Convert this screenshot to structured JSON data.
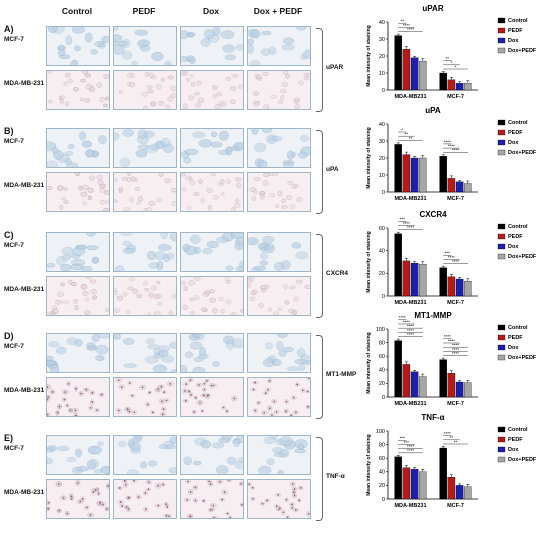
{
  "columns": [
    "Control",
    "PEDF",
    "Dox",
    "Dox + PEDF"
  ],
  "rows": [
    "MCF-7",
    "MDA-MB-231"
  ],
  "colors": {
    "control": "#000000",
    "pedf": "#b01c1c",
    "dox": "#1f1fa8",
    "dox_pedf": "#a6a6a6",
    "mcf7_stain": "#b9cfe4",
    "mda_stain": "#e7d6dc"
  },
  "panels": [
    {
      "letter": "A)",
      "marker": "uPAR"
    },
    {
      "letter": "B)",
      "marker": "uPA"
    },
    {
      "letter": "C)",
      "marker": "CXCR4"
    },
    {
      "letter": "D)",
      "marker": "MT1-MMP"
    },
    {
      "letter": "E)",
      "marker": "TNF-α"
    }
  ],
  "chart_data": [
    {
      "type": "bar",
      "title": "uPAR",
      "ylabel": "Mean intensity of staining",
      "ylim": [
        0,
        40
      ],
      "yticks": [
        "0",
        "10",
        "20",
        "30",
        "40"
      ],
      "categories": [
        "MDA-MB231",
        "MCF-7"
      ],
      "series": [
        {
          "name": "Control",
          "values": [
            32,
            10
          ]
        },
        {
          "name": "PEDF",
          "values": [
            24,
            6
          ]
        },
        {
          "name": "Dox",
          "values": [
            19,
            4
          ]
        },
        {
          "name": "Dox+PEDF",
          "values": [
            17,
            4
          ]
        }
      ],
      "significance": [
        "**",
        "****",
        "****",
        "**",
        "*",
        "*"
      ]
    },
    {
      "type": "bar",
      "title": "uPA",
      "ylabel": "Mean intensity of staining",
      "ylim": [
        0,
        40
      ],
      "yticks": [
        "0",
        "10",
        "20",
        "30",
        "40"
      ],
      "categories": [
        "MDA-MB231",
        "MCF-7"
      ],
      "series": [
        {
          "name": "Control",
          "values": [
            28,
            21
          ]
        },
        {
          "name": "PEDF",
          "values": [
            22,
            8
          ]
        },
        {
          "name": "Dox",
          "values": [
            20,
            6
          ]
        },
        {
          "name": "Dox+PEDF",
          "values": [
            20,
            5
          ]
        }
      ],
      "significance": [
        "*",
        "**",
        "**",
        "****",
        "****",
        "****"
      ]
    },
    {
      "type": "bar",
      "title": "CXCR4",
      "ylabel": "Mean intensity of staining",
      "ylim": [
        0,
        60
      ],
      "yticks": [
        "0",
        "20",
        "40",
        "60"
      ],
      "categories": [
        "MDA-MB231",
        "MCF-7"
      ],
      "series": [
        {
          "name": "Control",
          "values": [
            55,
            25
          ]
        },
        {
          "name": "PEDF",
          "values": [
            31,
            17
          ]
        },
        {
          "name": "Dox",
          "values": [
            29,
            15
          ]
        },
        {
          "name": "Dox+PEDF",
          "values": [
            28,
            13
          ]
        }
      ],
      "significance": [
        "***",
        "****",
        "****",
        "***",
        "****",
        "****"
      ]
    },
    {
      "type": "bar",
      "title": "MT1-MMP",
      "ylabel": "Mean intensity of staining",
      "ylim": [
        0,
        100
      ],
      "yticks": [
        "0",
        "20",
        "40",
        "60",
        "80",
        "100"
      ],
      "categories": [
        "MDA-MB231",
        "MCF-7"
      ],
      "series": [
        {
          "name": "Control",
          "values": [
            83,
            55
          ]
        },
        {
          "name": "PEDF",
          "values": [
            48,
            35
          ]
        },
        {
          "name": "Dox",
          "values": [
            37,
            22
          ]
        },
        {
          "name": "Dox+PEDF",
          "values": [
            30,
            21
          ]
        }
      ],
      "significance": [
        "****",
        "****",
        "****",
        "****",
        "****",
        "****",
        "****",
        "****",
        "****",
        "****"
      ]
    },
    {
      "type": "bar",
      "title": "TNF-α",
      "ylabel": "Mean intensity of staining",
      "ylim": [
        0,
        100
      ],
      "yticks": [
        "0",
        "20",
        "40",
        "60",
        "80",
        "100"
      ],
      "categories": [
        "MDA-MB231",
        "MCF-7"
      ],
      "series": [
        {
          "name": "Control",
          "values": [
            62,
            75
          ]
        },
        {
          "name": "PEDF",
          "values": [
            46,
            32
          ]
        },
        {
          "name": "Dox",
          "values": [
            44,
            20
          ]
        },
        {
          "name": "Dox+PEDF",
          "values": [
            40,
            18
          ]
        }
      ],
      "significance": [
        "***",
        "***",
        "****",
        "****",
        "****",
        "**",
        "**"
      ]
    }
  ]
}
